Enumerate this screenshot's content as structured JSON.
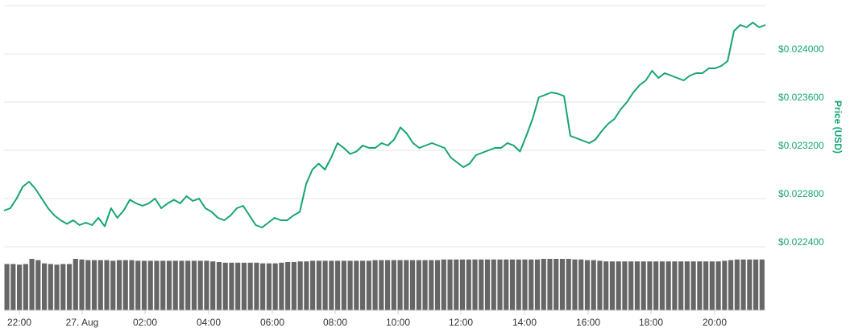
{
  "chart_data": {
    "type": "line",
    "ylabel": "Price (USD)",
    "y_ticks": [
      "$0.022400",
      "$0.022800",
      "$0.023200",
      "$0.023600",
      "$0.024000"
    ],
    "x_ticks": [
      "22:00",
      "27. Aug",
      "02:00",
      "04:00",
      "06:00",
      "08:00",
      "10:00",
      "12:00",
      "14:00",
      "16:00",
      "18:00",
      "20:00"
    ],
    "grid": true,
    "line_color": "#16a572",
    "volume_color": "#666666",
    "series": [
      {
        "values": [
          0.02266,
          0.02268,
          0.02276,
          0.02286,
          0.0229,
          0.02284,
          0.02276,
          0.02268,
          0.02262,
          0.02258,
          0.02255,
          0.02258,
          0.02254,
          0.02256,
          0.02254,
          0.0226,
          0.02253,
          0.02268,
          0.0226,
          0.02266,
          0.02275,
          0.02272,
          0.0227,
          0.02272,
          0.02276,
          0.02268,
          0.02272,
          0.02275,
          0.02272,
          0.02278,
          0.02274,
          0.02276,
          0.02268,
          0.02265,
          0.0226,
          0.02258,
          0.02262,
          0.02268,
          0.0227,
          0.02262,
          0.02254,
          0.02252,
          0.02256,
          0.0226,
          0.02258,
          0.02258,
          0.02262,
          0.02265,
          0.02288,
          0.023,
          0.02305,
          0.023,
          0.0231,
          0.02322,
          0.02318,
          0.02313,
          0.02315,
          0.0232,
          0.02318,
          0.02318,
          0.02322,
          0.0232,
          0.02325,
          0.02335,
          0.0233,
          0.02322,
          0.02318,
          0.0232,
          0.02322,
          0.0232,
          0.02318,
          0.0231,
          0.02306,
          0.02302,
          0.02305,
          0.02312,
          0.02314,
          0.02316,
          0.02318,
          0.02318,
          0.02322,
          0.0232,
          0.02315,
          0.02328,
          0.02342,
          0.0236,
          0.02362,
          0.02364,
          0.02363,
          0.02361,
          0.02328,
          0.02326,
          0.02324,
          0.02322,
          0.02325,
          0.02332,
          0.02338,
          0.02342,
          0.0235,
          0.02356,
          0.02364,
          0.0237,
          0.02374,
          0.02382,
          0.02376,
          0.0238,
          0.02378,
          0.02376,
          0.02374,
          0.02378,
          0.0238,
          0.0238,
          0.02384,
          0.02384,
          0.02386,
          0.0239,
          0.02415,
          0.0242,
          0.02418,
          0.02422,
          0.02418,
          0.0242
        ]
      }
    ],
    "volume": [
      0.72,
      0.72,
      0.71,
      0.72,
      0.8,
      0.78,
      0.73,
      0.72,
      0.71,
      0.72,
      0.72,
      0.8,
      0.79,
      0.78,
      0.78,
      0.78,
      0.78,
      0.77,
      0.78,
      0.78,
      0.78,
      0.77,
      0.77,
      0.77,
      0.77,
      0.77,
      0.77,
      0.77,
      0.77,
      0.77,
      0.77,
      0.77,
      0.77,
      0.76,
      0.75,
      0.74,
      0.74,
      0.74,
      0.74,
      0.74,
      0.74,
      0.73,
      0.73,
      0.73,
      0.74,
      0.75,
      0.75,
      0.76,
      0.76,
      0.77,
      0.77,
      0.77,
      0.77,
      0.77,
      0.77,
      0.77,
      0.77,
      0.77,
      0.77,
      0.78,
      0.78,
      0.78,
      0.78,
      0.78,
      0.78,
      0.78,
      0.78,
      0.78,
      0.78,
      0.78,
      0.79,
      0.79,
      0.79,
      0.79,
      0.79,
      0.79,
      0.79,
      0.79,
      0.79,
      0.79,
      0.79,
      0.79,
      0.79,
      0.79,
      0.79,
      0.79,
      0.8,
      0.8,
      0.8,
      0.8,
      0.8,
      0.79,
      0.79,
      0.78,
      0.78,
      0.77,
      0.76,
      0.76,
      0.76,
      0.76,
      0.76,
      0.76,
      0.76,
      0.76,
      0.76,
      0.76,
      0.76,
      0.76,
      0.76,
      0.76,
      0.76,
      0.76,
      0.76,
      0.76,
      0.76,
      0.77,
      0.78,
      0.79,
      0.79,
      0.79,
      0.79,
      0.79
    ]
  }
}
